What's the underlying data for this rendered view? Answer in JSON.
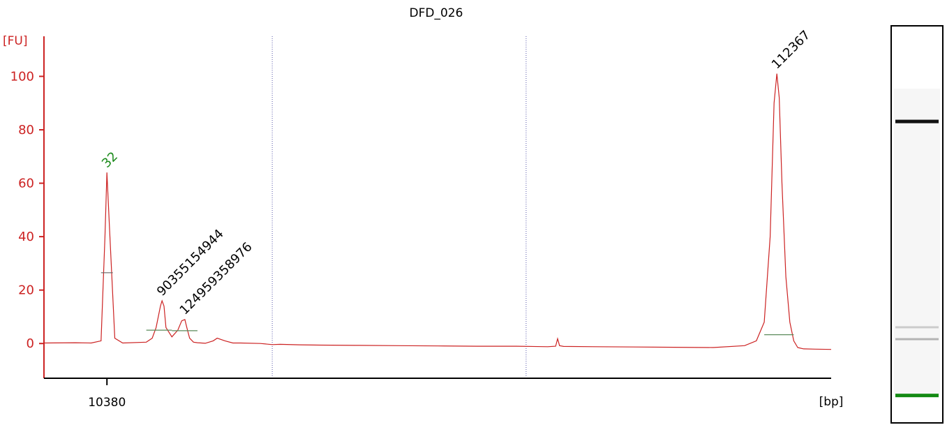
{
  "chart_data": {
    "type": "line",
    "title": "DFD_026",
    "ylabel": "[FU]",
    "xlabel": "[bp]",
    "ylim": [
      -13,
      115
    ],
    "yticks": [
      0,
      20,
      40,
      60,
      80,
      100
    ],
    "xticks": [
      {
        "label": "10380",
        "t": 1.6
      }
    ],
    "x_range_t": [
      0,
      20
    ],
    "vlines_t": [
      5.8,
      12.25
    ],
    "series": [
      {
        "color": "#cc2222",
        "x": [
          0.0,
          0.8,
          1.2,
          1.45,
          1.55,
          1.6,
          1.66,
          1.8,
          2.0,
          2.6,
          2.75,
          2.85,
          2.96,
          3.0,
          3.05,
          3.1,
          3.25,
          3.4,
          3.5,
          3.58,
          3.63,
          3.7,
          3.8,
          3.9,
          4.1,
          4.3,
          4.4,
          4.6,
          4.8,
          5.0,
          5.5,
          5.8,
          6.0,
          6.5,
          7.0,
          8.0,
          9.0,
          10.0,
          11.0,
          12.0,
          12.8,
          13.0,
          13.05,
          13.1,
          13.2,
          14.0,
          15.0,
          16.0,
          17.0,
          17.8,
          18.1,
          18.3,
          18.45,
          18.55,
          18.62,
          18.68,
          18.75,
          18.85,
          18.95,
          19.05,
          19.15,
          19.3,
          19.6,
          20.0
        ],
        "y": [
          0.2,
          0.3,
          0.2,
          1.0,
          40.0,
          64.0,
          45.0,
          2.0,
          0.2,
          0.5,
          2.0,
          6.0,
          14.0,
          16.0,
          14.0,
          6.0,
          2.5,
          5.0,
          8.5,
          9.0,
          6.0,
          2.0,
          0.5,
          0.3,
          0.1,
          1.0,
          2.0,
          1.0,
          0.2,
          0.2,
          0.0,
          -0.4,
          -0.3,
          -0.5,
          -0.6,
          -0.7,
          -0.8,
          -0.9,
          -1.0,
          -1.0,
          -1.2,
          -1.0,
          1.8,
          -0.8,
          -1.1,
          -1.2,
          -1.3,
          -1.4,
          -1.5,
          -0.8,
          1.0,
          8.0,
          40.0,
          90.0,
          101.0,
          92.0,
          60.0,
          25.0,
          8.0,
          1.0,
          -1.5,
          -2.0,
          -2.1,
          -2.2
        ]
      }
    ],
    "peaks": [
      {
        "label": "32",
        "t": 1.6,
        "y": 64,
        "color": "#1a8a1a"
      },
      {
        "label": "90355154944",
        "t": 3.0,
        "y": 16,
        "color": "#000000"
      },
      {
        "label": "124959358976",
        "t": 3.58,
        "y": 9,
        "color": "#000000"
      },
      {
        "label": "112367",
        "t": 18.62,
        "y": 101,
        "color": "#000000"
      }
    ],
    "peak_baselines": [
      {
        "t1": 1.45,
        "t2": 1.75,
        "y": 26.5,
        "color": "#666666"
      },
      {
        "t1": 2.6,
        "t2": 3.25,
        "y": 5.0,
        "color": "#5a8a5a"
      },
      {
        "t1": 3.25,
        "t2": 3.9,
        "y": 4.8,
        "color": "#5a8a5a"
      },
      {
        "t1": 18.3,
        "t2": 19.05,
        "y": 3.3,
        "color": "#5a8a5a"
      }
    ],
    "gel_bands": [
      {
        "pos": 0.24,
        "color": "#111111",
        "intensity": 1.0
      },
      {
        "pos": 0.76,
        "color": "#bbbbbb",
        "intensity": 0.5
      },
      {
        "pos": 0.79,
        "color": "#999999",
        "intensity": 0.5
      },
      {
        "pos": 0.93,
        "color": "#138a13",
        "intensity": 1.0
      }
    ]
  }
}
